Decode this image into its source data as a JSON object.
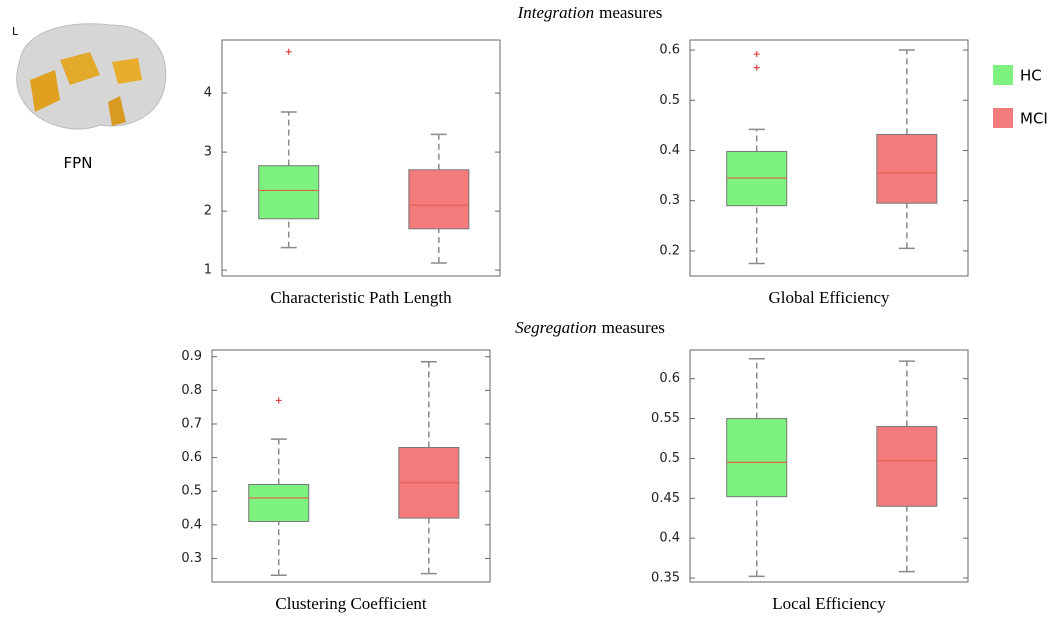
{
  "figure": {
    "marker": "L",
    "network": "FPN",
    "sections": [
      {
        "emphasis": "Integration",
        "rest": "measures"
      },
      {
        "emphasis": "Segregation",
        "rest": "measures"
      }
    ]
  },
  "legend": [
    {
      "name": "HC",
      "color": "#7ef27e"
    },
    {
      "name": "MCI",
      "color": "#f47b7b"
    }
  ],
  "median_color": "#e0604a",
  "chart_data": [
    {
      "type": "box",
      "xlabel": "Characteristic Path Length",
      "ylim": [
        0.9,
        4.9
      ],
      "yticks": [
        1,
        2,
        3,
        4
      ],
      "boxes": [
        {
          "whislo": 1.38,
          "q1": 1.87,
          "med": 2.35,
          "q3": 2.77,
          "whishi": 3.68,
          "fliers": [
            4.7
          ]
        },
        {
          "whislo": 1.12,
          "q1": 1.7,
          "med": 2.1,
          "q3": 2.7,
          "whishi": 3.3,
          "fliers": []
        }
      ]
    },
    {
      "type": "box",
      "xlabel": "Global Efficiency",
      "ylim": [
        0.15,
        0.62
      ],
      "yticks": [
        0.2,
        0.3,
        0.4,
        0.5,
        0.6
      ],
      "boxes": [
        {
          "whislo": 0.175,
          "q1": 0.29,
          "med": 0.345,
          "q3": 0.398,
          "whishi": 0.442,
          "fliers": [
            0.565,
            0.592
          ]
        },
        {
          "whislo": 0.205,
          "q1": 0.295,
          "med": 0.355,
          "q3": 0.432,
          "whishi": 0.6,
          "fliers": []
        }
      ]
    },
    {
      "type": "box",
      "xlabel": "Clustering Coefficient",
      "ylim": [
        0.23,
        0.92
      ],
      "yticks": [
        0.3,
        0.4,
        0.5,
        0.6,
        0.7,
        0.8,
        0.9
      ],
      "boxes": [
        {
          "whislo": 0.25,
          "q1": 0.41,
          "med": 0.48,
          "q3": 0.52,
          "whishi": 0.655,
          "fliers": [
            0.77
          ]
        },
        {
          "whislo": 0.255,
          "q1": 0.42,
          "med": 0.525,
          "q3": 0.63,
          "whishi": 0.885,
          "fliers": []
        }
      ]
    },
    {
      "type": "box",
      "xlabel": "Local Efficiency",
      "ylim": [
        0.345,
        0.636
      ],
      "yticks": [
        0.35,
        0.4,
        0.45,
        0.5,
        0.55,
        0.6
      ],
      "boxes": [
        {
          "whislo": 0.352,
          "q1": 0.452,
          "med": 0.495,
          "q3": 0.55,
          "whishi": 0.625,
          "fliers": []
        },
        {
          "whislo": 0.358,
          "q1": 0.44,
          "med": 0.497,
          "q3": 0.54,
          "whishi": 0.622,
          "fliers": []
        }
      ]
    }
  ]
}
